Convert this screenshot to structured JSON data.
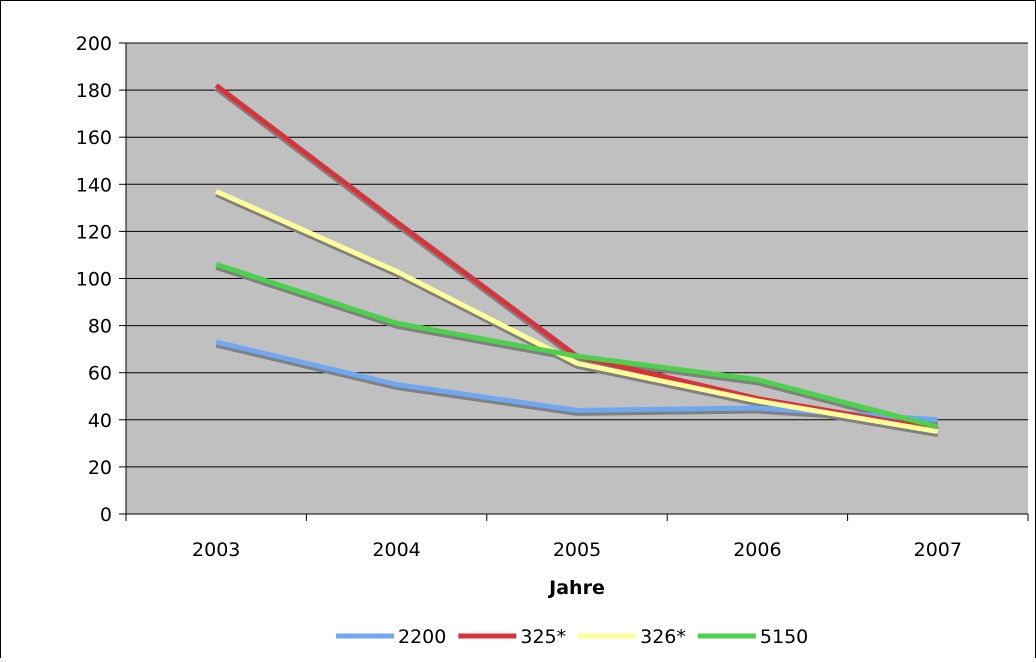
{
  "chart_data": {
    "type": "line",
    "title": "",
    "xlabel": "Jahre",
    "ylabel": "",
    "categories": [
      "2003",
      "2004",
      "2005",
      "2006",
      "2007"
    ],
    "ylim": [
      0,
      200
    ],
    "yticks": [
      0,
      20,
      40,
      60,
      80,
      100,
      120,
      140,
      160,
      180,
      200
    ],
    "grid": true,
    "legend": "bottom",
    "plot_background": "#c0c0c0",
    "shadow_color": "#808080",
    "series": [
      {
        "name": "2200",
        "color": "#6fa8f0",
        "values": [
          73,
          55,
          44,
          45,
          40
        ]
      },
      {
        "name": "325*",
        "color": "#d8323c",
        "values": [
          182,
          124,
          67,
          49,
          36
        ]
      },
      {
        "name": "326*",
        "color": "#ffff99",
        "values": [
          137,
          103,
          64,
          48,
          35
        ]
      },
      {
        "name": "5150",
        "color": "#4cd14c",
        "values": [
          106,
          81,
          67,
          57,
          37
        ]
      }
    ]
  }
}
